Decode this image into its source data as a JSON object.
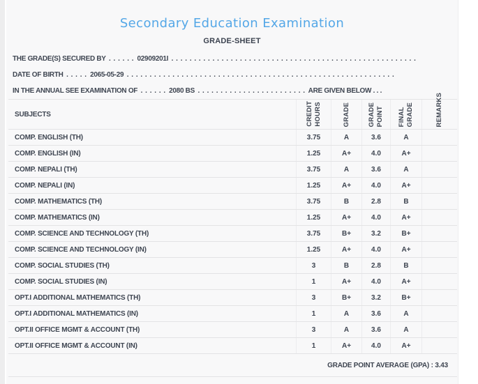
{
  "page": {
    "title": "Secondary Education Examination",
    "subtitle": "GRADE-SHEET"
  },
  "colors": {
    "title_accent": "#54a7e7",
    "body_text": "#3e4551",
    "page_background": "#f8f8f9",
    "border": "#e3e3e5"
  },
  "info": {
    "line1": {
      "label": "THE GRADE(S) SECURED BY",
      "leader": ". . . . . .",
      "value": "02909201I",
      "trailer": ". . . . . . . . . . . . . . . . . . . . . . . . . . . . . . . . . . . . . . . . . . . . . . . . . . . . . . ."
    },
    "line2": {
      "label": "DATE OF BIRTH",
      "leader": ". . . . .",
      "value": "2065-05-29",
      "trailer": ". . . . . . . . . . . . . . . . . . . . . . . . . . . . . . . . . . . . . . . . . . . . . . . . . . . . . . . . . . ."
    },
    "line3": {
      "label": "IN THE ANNUAL SEE EXAMINATION OF",
      "leader": ". . . . . .",
      "value": "2080 BS",
      "mid": ". . . . . . . . . . . . . . . . . . . . . . . .",
      "suffix": "ARE GIVEN BELOW . . ."
    }
  },
  "table": {
    "subjects_header": "SUBJECTS",
    "columns": [
      {
        "line1": "CREDIT",
        "line2": "HOURS"
      },
      {
        "line1": "GRADE",
        "line2": ""
      },
      {
        "line1": "GRADE",
        "line2": "POINT"
      },
      {
        "line1": "FINAL",
        "line2": "GRADE"
      },
      {
        "line1": "REMARKS",
        "line2": ""
      }
    ],
    "rows": [
      {
        "subject": "COMP. ENGLISH (TH)",
        "credit": "3.75",
        "grade": "A",
        "point": "3.6",
        "final": "A",
        "remarks": ""
      },
      {
        "subject": "COMP. ENGLISH (IN)",
        "credit": "1.25",
        "grade": "A+",
        "point": "4.0",
        "final": "A+",
        "remarks": ""
      },
      {
        "subject": "COMP. NEPALI (TH)",
        "credit": "3.75",
        "grade": "A",
        "point": "3.6",
        "final": "A",
        "remarks": ""
      },
      {
        "subject": "COMP. NEPALI (IN)",
        "credit": "1.25",
        "grade": "A+",
        "point": "4.0",
        "final": "A+",
        "remarks": ""
      },
      {
        "subject": "COMP. MATHEMATICS (TH)",
        "credit": "3.75",
        "grade": "B",
        "point": "2.8",
        "final": "B",
        "remarks": ""
      },
      {
        "subject": "COMP. MATHEMATICS (IN)",
        "credit": "1.25",
        "grade": "A+",
        "point": "4.0",
        "final": "A+",
        "remarks": ""
      },
      {
        "subject": "COMP. SCIENCE AND TECHNOLOGY (TH)",
        "credit": "3.75",
        "grade": "B+",
        "point": "3.2",
        "final": "B+",
        "remarks": ""
      },
      {
        "subject": "COMP. SCIENCE AND TECHNOLOGY (IN)",
        "credit": "1.25",
        "grade": "A+",
        "point": "4.0",
        "final": "A+",
        "remarks": ""
      },
      {
        "subject": "COMP. SOCIAL STUDIES (TH)",
        "credit": "3",
        "grade": "B",
        "point": "2.8",
        "final": "B",
        "remarks": ""
      },
      {
        "subject": "COMP. SOCIAL STUDIES (IN)",
        "credit": "1",
        "grade": "A+",
        "point": "4.0",
        "final": "A+",
        "remarks": ""
      },
      {
        "subject": "OPT.I ADDITIONAL MATHEMATICS (TH)",
        "credit": "3",
        "grade": "B+",
        "point": "3.2",
        "final": "B+",
        "remarks": ""
      },
      {
        "subject": "OPT.I ADDITIONAL MATHEMATICS (IN)",
        "credit": "1",
        "grade": "A",
        "point": "3.6",
        "final": "A",
        "remarks": ""
      },
      {
        "subject": "OPT.II OFFICE MGMT & ACCOUNT (TH)",
        "credit": "3",
        "grade": "A",
        "point": "3.6",
        "final": "A",
        "remarks": ""
      },
      {
        "subject": "OPT.II OFFICE MGMT & ACCOUNT (IN)",
        "credit": "1",
        "grade": "A+",
        "point": "4.0",
        "final": "A+",
        "remarks": ""
      }
    ],
    "footer": "GRADE POINT AVERAGE (GPA) : 3.43"
  }
}
